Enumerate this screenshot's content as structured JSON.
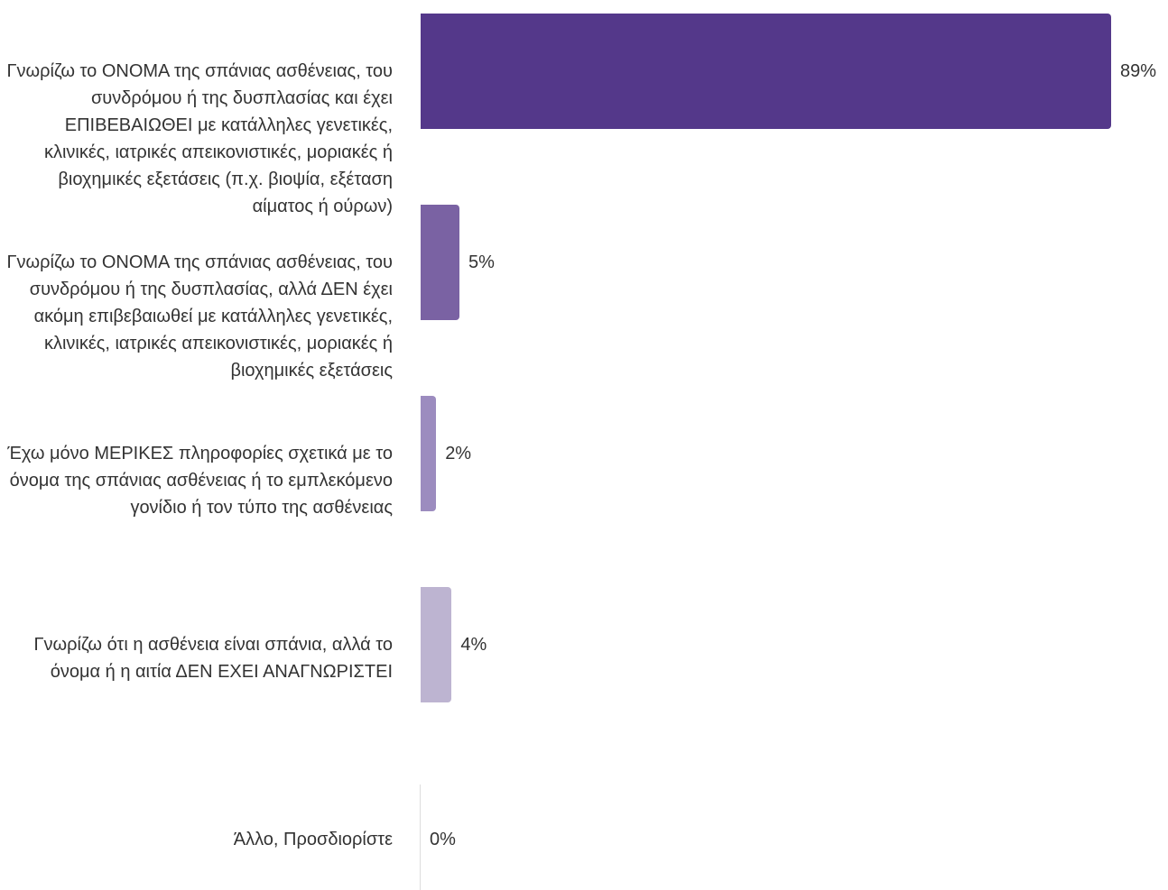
{
  "chart_data": {
    "type": "barh",
    "categories": [
      "Γνωρίζω το ΟΝΟΜΑ της σπάνιας ασθένειας, του συνδρόμου ή της δυσπλασίας και έχει ΕΠΙΒΕΒΑΙΩΘΕΙ με κατάλληλες γενετικές, κλινικές, ιατρικές απεικονιστικές, μοριακές ή βιοχημικές εξετάσεις (π.χ. βιοψία, εξέταση αίματος ή ούρων)",
      "Γνωρίζω το ΟΝΟΜΑ της σπάνιας ασθένειας, του συνδρόμου ή της δυσπλασίας, αλλά ΔΕΝ έχει ακόμη επιβεβαιωθεί με κατάλληλες γενετικές, κλινικές, ιατρικές απεικονιστικές, μοριακές ή βιοχημικές εξετάσεις",
      "Έχω μόνο ΜΕΡΙΚΕΣ πληροφορίες σχετικά με το όνομα της σπάνιας ασθένειας ή το εμπλεκόμενο γονίδιο ή τον τύπο της ασθένειας",
      "Γνωρίζω ότι η ασθένεια είναι σπάνια, αλλά το όνομα ή η αιτία ΔΕΝ ΕΧΕΙ ΑΝΑΓΝΩΡΙΣΤΕΙ",
      "Άλλο, Προσδιορίστε"
    ],
    "values": [
      89,
      5,
      2,
      4,
      0
    ],
    "value_labels": [
      "89%",
      "5%",
      "2%",
      "4%",
      "0%"
    ],
    "colors": [
      "#54388a",
      "#7a62a3",
      "#9c8cbf",
      "#bdb4d1",
      "#d9d9d9"
    ],
    "xlim": [
      0,
      89
    ]
  }
}
